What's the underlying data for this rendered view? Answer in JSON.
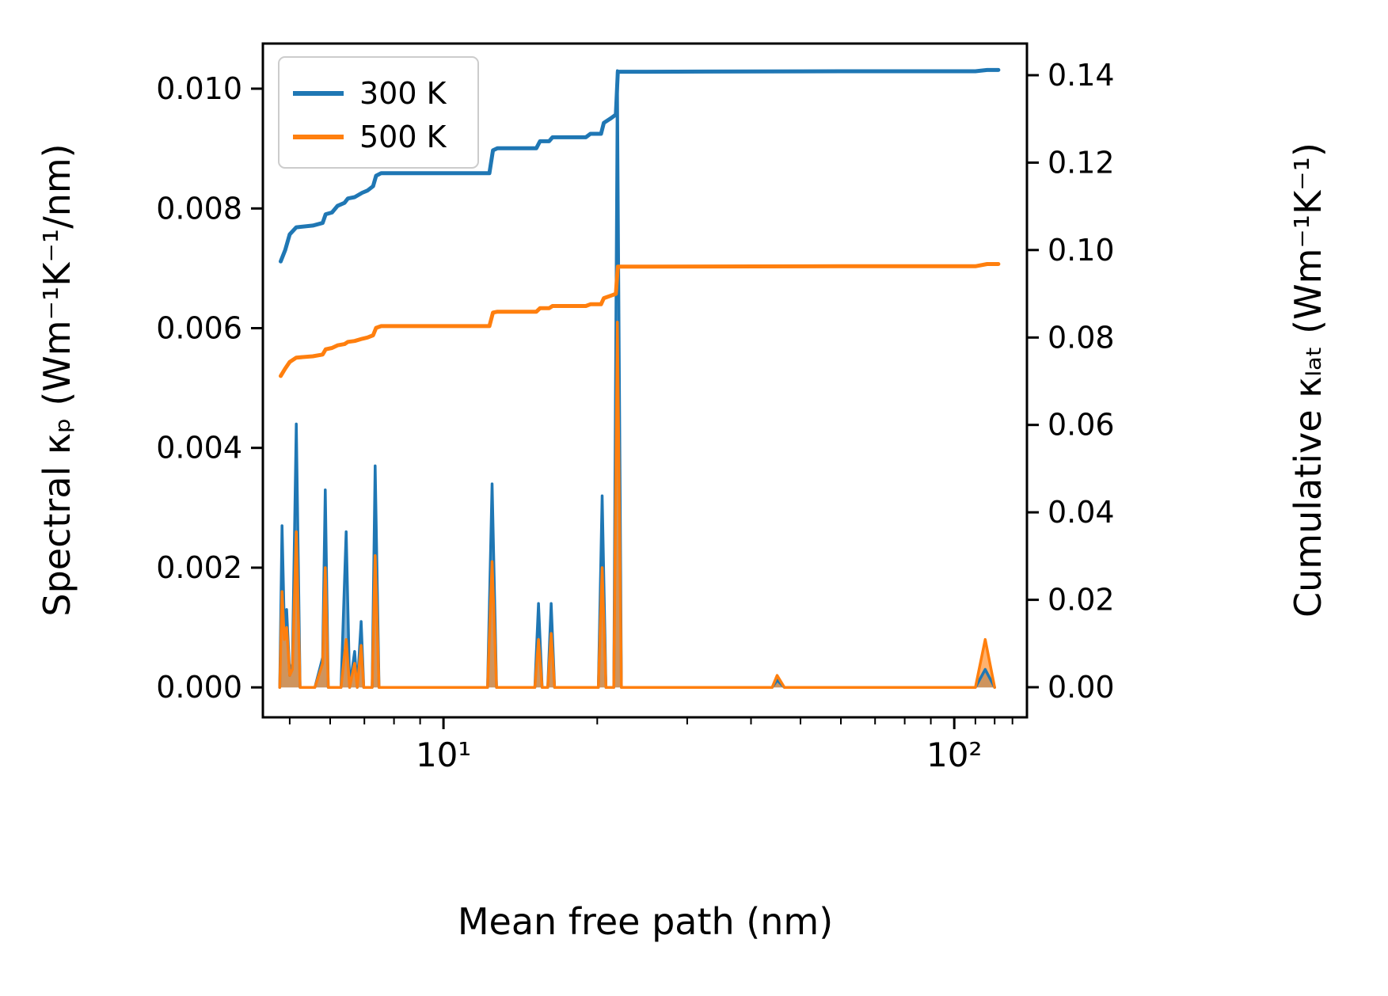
{
  "chart_data": {
    "type": "line",
    "title": "",
    "xlabel": "Mean free path (nm)",
    "ylabel_left": "Spectral κₚ (Wm⁻¹K⁻¹/nm)",
    "ylabel_right": "Cumulative κₗₐₜ (Wm⁻¹K⁻¹)",
    "x_scale": "log",
    "grid": false,
    "xlim": [
      4.43,
      138.8
    ],
    "ylim_left": [
      -0.0005,
      0.010754
    ],
    "ylim_right": [
      -0.00688,
      0.14724
    ],
    "x_major_ticks": [
      {
        "value": 10,
        "label": "10¹"
      },
      {
        "value": 100,
        "label": "10²"
      }
    ],
    "x_minor_ticks": [
      5,
      6,
      7,
      8,
      9,
      20,
      30,
      40,
      50,
      60,
      70,
      80,
      90,
      110,
      120,
      130
    ],
    "left_ticks": [
      {
        "value": 0.0,
        "label": "0.000"
      },
      {
        "value": 0.002,
        "label": "0.002"
      },
      {
        "value": 0.004,
        "label": "0.004"
      },
      {
        "value": 0.006,
        "label": "0.006"
      },
      {
        "value": 0.008,
        "label": "0.008"
      },
      {
        "value": 0.01,
        "label": "0.010"
      }
    ],
    "right_ticks": [
      {
        "value": 0.0,
        "label": "0.00"
      },
      {
        "value": 0.02,
        "label": "0.02"
      },
      {
        "value": 0.04,
        "label": "0.04"
      },
      {
        "value": 0.06,
        "label": "0.06"
      },
      {
        "value": 0.08,
        "label": "0.08"
      },
      {
        "value": 0.1,
        "label": "0.10"
      },
      {
        "value": 0.12,
        "label": "0.12"
      },
      {
        "value": 0.14,
        "label": "0.14"
      }
    ],
    "legend": {
      "position": "upper left",
      "items": [
        {
          "label": "300 K",
          "color": "#1f77b4"
        },
        {
          "label": "500 K",
          "color": "#ff7f0e"
        }
      ]
    },
    "series": [
      {
        "id": "spectral-300k",
        "name": "300 K spectral kappa_p",
        "axis": "left",
        "style": "area",
        "color": "#1f77b4",
        "fill_opacity": 0.55,
        "points": [
          [
            4.78,
            0.0
          ],
          [
            4.83,
            0.0027
          ],
          [
            4.88,
            0.001
          ],
          [
            4.93,
            0.0013
          ],
          [
            5.0,
            0.0002
          ],
          [
            5.06,
            0.0004
          ],
          [
            5.15,
            0.0044
          ],
          [
            5.24,
            0.0
          ],
          [
            5.6,
            0.0
          ],
          [
            5.8,
            0.0005
          ],
          [
            5.87,
            0.0033
          ],
          [
            5.95,
            0.0
          ],
          [
            6.3,
            0.0
          ],
          [
            6.45,
            0.0026
          ],
          [
            6.55,
            0.0
          ],
          [
            6.7,
            0.0006
          ],
          [
            6.78,
            0.0
          ],
          [
            6.9,
            0.0011
          ],
          [
            6.98,
            0.0
          ],
          [
            7.25,
            0.0
          ],
          [
            7.35,
            0.0037
          ],
          [
            7.48,
            0.0
          ],
          [
            12.2,
            0.0
          ],
          [
            12.45,
            0.0034
          ],
          [
            12.7,
            0.0
          ],
          [
            15.1,
            0.0
          ],
          [
            15.35,
            0.0014
          ],
          [
            15.6,
            0.0
          ],
          [
            16.0,
            0.0
          ],
          [
            16.25,
            0.0014
          ],
          [
            16.5,
            0.0
          ],
          [
            20.1,
            0.0
          ],
          [
            20.45,
            0.0032
          ],
          [
            20.8,
            0.0
          ],
          [
            21.55,
            0.0
          ],
          [
            21.9,
            0.0103
          ],
          [
            22.3,
            0.0
          ],
          [
            44.0,
            0.0
          ],
          [
            45.0,
            0.00012
          ],
          [
            46.5,
            0.0
          ],
          [
            110.0,
            0.0
          ],
          [
            115.0,
            0.0003
          ],
          [
            120.0,
            0.0
          ]
        ]
      },
      {
        "id": "spectral-500k",
        "name": "500 K spectral kappa_p",
        "axis": "left",
        "style": "area",
        "color": "#ff7f0e",
        "fill_opacity": 0.6,
        "points": [
          [
            4.78,
            0.0
          ],
          [
            4.83,
            0.0016
          ],
          [
            4.88,
            0.0008
          ],
          [
            4.93,
            0.001
          ],
          [
            5.0,
            0.0002
          ],
          [
            5.06,
            0.0003
          ],
          [
            5.15,
            0.0026
          ],
          [
            5.24,
            0.0
          ],
          [
            5.6,
            0.0
          ],
          [
            5.8,
            0.0004
          ],
          [
            5.87,
            0.002
          ],
          [
            5.95,
            0.0
          ],
          [
            6.3,
            0.0
          ],
          [
            6.45,
            0.0008
          ],
          [
            6.55,
            0.0
          ],
          [
            6.7,
            0.0004
          ],
          [
            6.78,
            0.0
          ],
          [
            6.9,
            0.0007
          ],
          [
            6.98,
            0.0
          ],
          [
            7.25,
            0.0
          ],
          [
            7.35,
            0.0022
          ],
          [
            7.48,
            0.0
          ],
          [
            12.2,
            0.0
          ],
          [
            12.45,
            0.0021
          ],
          [
            12.7,
            0.0
          ],
          [
            15.1,
            0.0
          ],
          [
            15.35,
            0.0008
          ],
          [
            15.6,
            0.0
          ],
          [
            16.0,
            0.0
          ],
          [
            16.25,
            0.0009
          ],
          [
            16.5,
            0.0
          ],
          [
            20.1,
            0.0
          ],
          [
            20.45,
            0.002
          ],
          [
            20.8,
            0.0
          ],
          [
            21.55,
            0.0
          ],
          [
            21.9,
            0.0061
          ],
          [
            22.3,
            0.0
          ],
          [
            44.0,
            0.0
          ],
          [
            45.0,
            0.0002
          ],
          [
            46.5,
            0.0
          ],
          [
            110.0,
            0.0
          ],
          [
            115.0,
            0.0008
          ],
          [
            120.0,
            0.0
          ]
        ]
      },
      {
        "id": "cumulative-300k",
        "name": "300 K cumulative kappa_lat",
        "axis": "right",
        "style": "line",
        "color": "#1f77b4",
        "points": [
          [
            4.8,
            0.0974
          ],
          [
            4.9,
            0.1
          ],
          [
            5.0,
            0.1036
          ],
          [
            5.15,
            0.1052
          ],
          [
            5.55,
            0.1056
          ],
          [
            5.8,
            0.1062
          ],
          [
            5.88,
            0.1082
          ],
          [
            6.05,
            0.1086
          ],
          [
            6.2,
            0.1101
          ],
          [
            6.4,
            0.1108
          ],
          [
            6.5,
            0.1118
          ],
          [
            6.7,
            0.1121
          ],
          [
            6.93,
            0.1131
          ],
          [
            7.1,
            0.1136
          ],
          [
            7.28,
            0.1146
          ],
          [
            7.38,
            0.117
          ],
          [
            7.55,
            0.1176
          ],
          [
            12.3,
            0.1176
          ],
          [
            12.5,
            0.1228
          ],
          [
            12.75,
            0.1233
          ],
          [
            15.2,
            0.1233
          ],
          [
            15.45,
            0.1249
          ],
          [
            16.1,
            0.1249
          ],
          [
            16.35,
            0.1258
          ],
          [
            19.0,
            0.1258
          ],
          [
            19.4,
            0.1266
          ],
          [
            20.35,
            0.1266
          ],
          [
            20.6,
            0.1291
          ],
          [
            21.3,
            0.1302
          ],
          [
            21.75,
            0.131
          ],
          [
            21.95,
            0.1408
          ],
          [
            25.0,
            0.1408
          ],
          [
            60.0,
            0.1409
          ],
          [
            110.0,
            0.1409
          ],
          [
            116.0,
            0.1412
          ],
          [
            122.0,
            0.1412
          ]
        ]
      },
      {
        "id": "cumulative-500k",
        "name": "500 K cumulative kappa_lat",
        "axis": "right",
        "style": "line",
        "color": "#ff7f0e",
        "points": [
          [
            4.8,
            0.0712
          ],
          [
            4.9,
            0.0729
          ],
          [
            5.0,
            0.0744
          ],
          [
            5.15,
            0.0754
          ],
          [
            5.55,
            0.0757
          ],
          [
            5.8,
            0.0761
          ],
          [
            5.88,
            0.0773
          ],
          [
            6.05,
            0.0776
          ],
          [
            6.2,
            0.0782
          ],
          [
            6.4,
            0.0785
          ],
          [
            6.5,
            0.079
          ],
          [
            6.7,
            0.0792
          ],
          [
            6.93,
            0.0797
          ],
          [
            7.1,
            0.08
          ],
          [
            7.28,
            0.0805
          ],
          [
            7.38,
            0.0822
          ],
          [
            7.55,
            0.0826
          ],
          [
            12.3,
            0.0826
          ],
          [
            12.5,
            0.0857
          ],
          [
            12.75,
            0.0859
          ],
          [
            15.2,
            0.0859
          ],
          [
            15.45,
            0.0867
          ],
          [
            16.1,
            0.0867
          ],
          [
            16.35,
            0.0872
          ],
          [
            19.0,
            0.0872
          ],
          [
            19.4,
            0.0876
          ],
          [
            20.35,
            0.0876
          ],
          [
            20.6,
            0.089
          ],
          [
            21.3,
            0.0896
          ],
          [
            21.75,
            0.09
          ],
          [
            21.95,
            0.0962
          ],
          [
            25.0,
            0.0962
          ],
          [
            60.0,
            0.0963
          ],
          [
            110.0,
            0.0963
          ],
          [
            116.0,
            0.0968
          ],
          [
            122.0,
            0.0968
          ]
        ]
      }
    ]
  }
}
